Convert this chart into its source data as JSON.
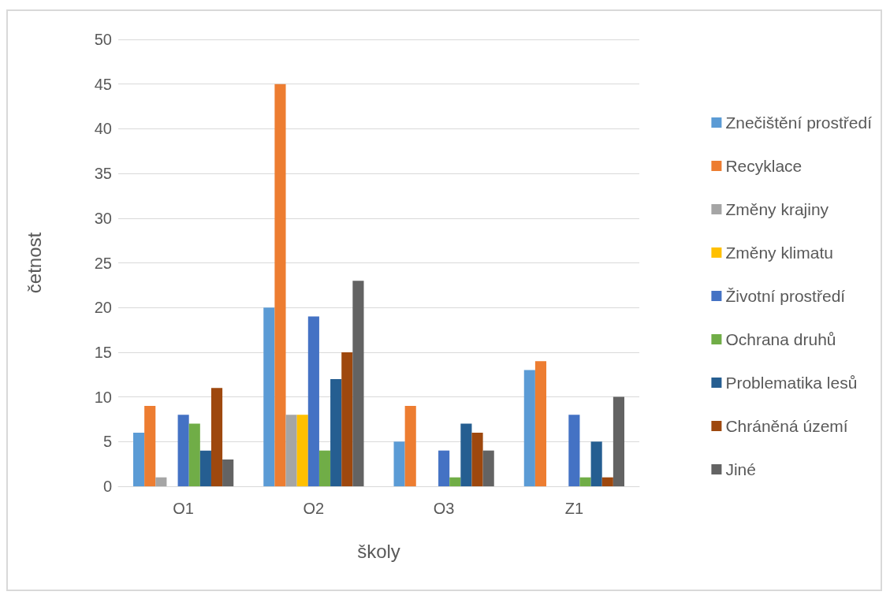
{
  "chart_data": {
    "type": "bar",
    "xlabel": "školy",
    "ylabel": "četnost",
    "categories": [
      "O1",
      "O2",
      "O3",
      "Z1"
    ],
    "series": [
      {
        "name": "Znečištění prostředí",
        "color": "#5b9bd5",
        "values": [
          6,
          20,
          5,
          13
        ]
      },
      {
        "name": "Recyklace",
        "color": "#ed7d31",
        "values": [
          9,
          45,
          9,
          14
        ]
      },
      {
        "name": "Změny krajiny",
        "color": "#a5a5a5",
        "values": [
          1,
          8,
          0,
          0
        ]
      },
      {
        "name": "Změny klimatu",
        "color": "#ffc000",
        "values": [
          0,
          8,
          0,
          0
        ]
      },
      {
        "name": "Životní prostředí",
        "color": "#4472c4",
        "values": [
          8,
          19,
          4,
          8
        ]
      },
      {
        "name": "Ochrana druhů",
        "color": "#70ad47",
        "values": [
          7,
          4,
          1,
          1
        ]
      },
      {
        "name": "Problematika lesů",
        "color": "#255e91",
        "values": [
          4,
          12,
          7,
          5
        ]
      },
      {
        "name": "Chráněná území",
        "color": "#9e480e",
        "values": [
          11,
          15,
          6,
          1
        ]
      },
      {
        "name": "Jiné",
        "color": "#636363",
        "values": [
          3,
          23,
          4,
          10
        ]
      }
    ],
    "ylim": [
      0,
      50
    ],
    "yticks": [
      0,
      5,
      10,
      15,
      20,
      25,
      30,
      35,
      40,
      45,
      50
    ],
    "grid": "y",
    "legend": "right"
  }
}
